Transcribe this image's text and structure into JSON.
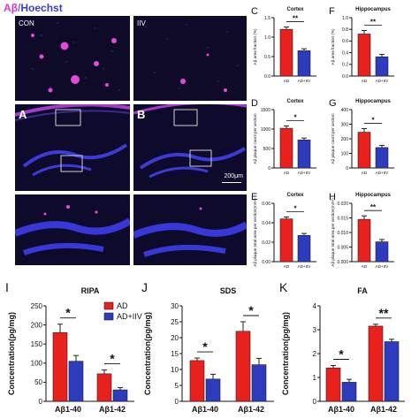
{
  "figure": {
    "title_ab": "Aβ",
    "title_sep": "/",
    "title_hoechst": "Hoechst",
    "label_con": "CON",
    "label_iiv": "IIV",
    "letter_a": "A",
    "letter_b": "B",
    "scale_bar": "200μm"
  },
  "colors": {
    "ad": "#e8211c",
    "iiv": "#2e3bbd",
    "abeta": "#d637d6",
    "hoechst": "#2b2bd0"
  },
  "chart_data": [
    {
      "id": "C",
      "type": "bar",
      "panel": "C",
      "title": "Cortex",
      "ylabel": "Aβ area fraction (%)",
      "categories": [
        "AD",
        "AD+IIV"
      ],
      "values": [
        1.2,
        0.65
      ],
      "errors": [
        0.06,
        0.05
      ],
      "ylim": [
        0,
        1.5
      ],
      "yticks": [
        "0.0",
        "0.5",
        "1.0",
        "1.5"
      ],
      "yticks_values": [
        0,
        0.5,
        1.0,
        1.5
      ],
      "sig": "**",
      "colors": [
        "#e8211c",
        "#2e3bbd"
      ]
    },
    {
      "id": "F",
      "type": "bar",
      "panel": "F",
      "title": "Hippocampus",
      "ylabel": "Aβ area fraction (%)",
      "categories": [
        "AD",
        "AD+IIV"
      ],
      "values": [
        0.72,
        0.33
      ],
      "errors": [
        0.06,
        0.04
      ],
      "ylim": [
        0,
        1.0
      ],
      "yticks": [
        "0.0",
        "0.2",
        "0.4",
        "0.6",
        "0.8",
        "1.0"
      ],
      "yticks_values": [
        0,
        0.2,
        0.4,
        0.6,
        0.8,
        1.0
      ],
      "sig": "**",
      "colors": [
        "#e8211c",
        "#2e3bbd"
      ]
    },
    {
      "id": "D",
      "type": "bar",
      "panel": "D",
      "title": "Cortex",
      "ylabel": "Aβ plaque count per section",
      "categories": [
        "AD",
        "AD+IIV"
      ],
      "values": [
        1020,
        720
      ],
      "errors": [
        60,
        50
      ],
      "ylim": [
        0,
        1500
      ],
      "yticks": [
        "0",
        "500",
        "1000",
        "1500"
      ],
      "yticks_values": [
        0,
        500,
        1000,
        1500
      ],
      "sig": "*",
      "colors": [
        "#e8211c",
        "#2e3bbd"
      ]
    },
    {
      "id": "G",
      "type": "bar",
      "panel": "G",
      "title": "Hippocampus",
      "ylabel": "Aβ plaque count per section",
      "categories": [
        "AD",
        "AD+IIV"
      ],
      "values": [
        245,
        140
      ],
      "errors": [
        25,
        15
      ],
      "ylim": [
        0,
        400
      ],
      "yticks": [
        "0",
        "100",
        "200",
        "300",
        "400"
      ],
      "yticks_values": [
        0,
        100,
        200,
        300,
        400
      ],
      "sig": "*",
      "colors": [
        "#e8211c",
        "#2e3bbd"
      ]
    },
    {
      "id": "E",
      "type": "bar",
      "panel": "E",
      "title": "Cortex",
      "ylabel": "Aβ plaque total area per section(mm²)",
      "categories": [
        "AD",
        "AD+IIV"
      ],
      "values": [
        0.044,
        0.027
      ],
      "errors": [
        0.002,
        0.002
      ],
      "ylim": [
        0,
        0.06
      ],
      "yticks": [
        "0.00",
        "0.02",
        "0.04",
        "0.06"
      ],
      "yticks_values": [
        0,
        0.02,
        0.04,
        0.06
      ],
      "sig": "*",
      "colors": [
        "#e8211c",
        "#2e3bbd"
      ]
    },
    {
      "id": "H",
      "type": "bar",
      "panel": "H",
      "title": "Hippocampus",
      "ylabel": "Aβ plaque total area per section(mm²)",
      "categories": [
        "AD",
        "AD+IIV"
      ],
      "values": [
        0.0145,
        0.0068
      ],
      "errors": [
        0.0012,
        0.0008
      ],
      "ylim": [
        0,
        0.02
      ],
      "yticks": [
        "0.000",
        "0.005",
        "0.010",
        "0.015",
        "0.020"
      ],
      "yticks_values": [
        0,
        0.005,
        0.01,
        0.015,
        0.02
      ],
      "sig": "**",
      "colors": [
        "#e8211c",
        "#2e3bbd"
      ]
    },
    {
      "id": "I",
      "type": "bar",
      "panel": "I",
      "title": "RIPA",
      "ylabel": "Concentration(pg/mg)",
      "categories": [
        "Aβ1-40",
        "Aβ1-42"
      ],
      "series": [
        {
          "name": "AD",
          "values": [
            180,
            72
          ],
          "errors": [
            22,
            10
          ]
        },
        {
          "name": "AD+IIV",
          "values": [
            105,
            30
          ],
          "errors": [
            15,
            6
          ]
        }
      ],
      "ylim": [
        0,
        250
      ],
      "yticks": [
        "0",
        "50",
        "100",
        "150",
        "200",
        "250"
      ],
      "yticks_values": [
        0,
        50,
        100,
        150,
        200,
        250
      ],
      "sig": [
        "*",
        "*"
      ],
      "legend": "top-right",
      "colors": [
        "#e8211c",
        "#2e3bbd"
      ]
    },
    {
      "id": "J",
      "type": "bar",
      "panel": "J",
      "title": "SDS",
      "ylabel": "Concentration(pg/mg)",
      "categories": [
        "Aβ1-40",
        "Aβ1-42"
      ],
      "series": [
        {
          "name": "AD",
          "values": [
            12.8,
            22
          ],
          "errors": [
            0.8,
            3
          ]
        },
        {
          "name": "AD+IIV",
          "values": [
            7,
            11.5
          ],
          "errors": [
            1.5,
            2
          ]
        }
      ],
      "ylim": [
        0,
        30
      ],
      "yticks": [
        "0",
        "5",
        "10",
        "15",
        "20",
        "25",
        "30"
      ],
      "yticks_values": [
        0,
        5,
        10,
        15,
        20,
        25,
        30
      ],
      "sig": [
        "*",
        "*"
      ],
      "colors": [
        "#e8211c",
        "#2e3bbd"
      ]
    },
    {
      "id": "K",
      "type": "bar",
      "panel": "K",
      "title": "FA",
      "ylabel": "Concentration(pg/mg)",
      "categories": [
        "Aβ1-40",
        "Aβ1-42"
      ],
      "series": [
        {
          "name": "AD",
          "values": [
            1.4,
            3.15
          ],
          "errors": [
            0.1,
            0.08
          ]
        },
        {
          "name": "AD+IIV",
          "values": [
            0.8,
            2.5
          ],
          "errors": [
            0.12,
            0.1
          ]
        }
      ],
      "ylim": [
        0,
        4
      ],
      "yticks": [
        "0",
        "1",
        "2",
        "3",
        "4"
      ],
      "yticks_values": [
        0,
        1,
        2,
        3,
        4
      ],
      "sig": [
        "*",
        "**"
      ],
      "colors": [
        "#e8211c",
        "#2e3bbd"
      ]
    }
  ]
}
